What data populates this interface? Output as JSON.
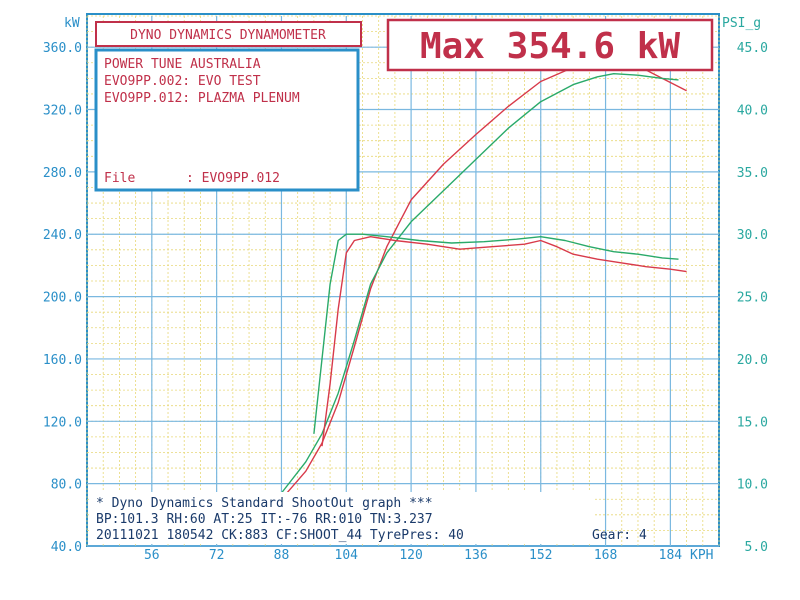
{
  "chart_data": {
    "type": "line",
    "title": "DYNO DYNAMICS DYNAMOMETER",
    "max_label": "Max 354.6 kW",
    "info": {
      "company": "POWER TUNE AUSTRALIA",
      "run1": "EVO9PP.002: EVO TEST",
      "run2": "EVO9PP.012: PLAZMA PLENUM",
      "file_label": "File",
      "file_value": ": EVO9PP.012"
    },
    "footer": {
      "line1": "* Dyno Dynamics Standard ShootOut graph ***",
      "line2": "BP:101.3  RH:60  AT:25  IT:-76  RR:010  TN:3.237",
      "line3": "20111021  180542  CK:883  CF:SHOOT_44  TyrePres: 40",
      "gear": "Gear: 4"
    },
    "xlabel": "KPH",
    "ylabel_left": "kW",
    "ylabel_right": "PSI_g",
    "xlim": [
      40,
      196
    ],
    "ylim_left": [
      40,
      380
    ],
    "ylim_right": [
      5,
      47.5
    ],
    "x_ticks": [
      56,
      72,
      88,
      104,
      120,
      136,
      152,
      168,
      184
    ],
    "y_ticks_left": [
      "40.0",
      "80.0",
      "120.0",
      "160.0",
      "200.0",
      "240.0",
      "280.0",
      "320.0",
      "360.0"
    ],
    "y_ticks_right": [
      "5.0",
      "10.0",
      "15.0",
      "20.0",
      "25.0",
      "30.0",
      "35.0",
      "40.0",
      "45.0"
    ],
    "colors": {
      "frame": "#2a8fc8",
      "title_red": "#c0304a",
      "grid_major": "#7ab8e0",
      "grid_minor": "#e8d878",
      "left_axis": "#2a8fc8",
      "right_axis": "#2aa8a0",
      "run_red": "#d83a4a",
      "run_green": "#2aaa6a",
      "text_dark": "#1a3a6a"
    },
    "series": [
      {
        "color": "red",
        "kind": "power_kW",
        "points": [
          [
            72,
            42
          ],
          [
            80,
            52
          ],
          [
            88,
            70
          ],
          [
            94,
            88
          ],
          [
            98,
            106
          ],
          [
            102,
            132
          ],
          [
            106,
            168
          ],
          [
            110,
            205
          ],
          [
            114,
            232
          ],
          [
            120,
            262
          ],
          [
            128,
            285
          ],
          [
            136,
            304
          ],
          [
            144,
            322
          ],
          [
            152,
            338
          ],
          [
            160,
            347
          ],
          [
            166,
            352
          ],
          [
            170,
            354.6
          ],
          [
            176,
            348
          ],
          [
            182,
            340
          ],
          [
            188,
            332
          ]
        ]
      },
      {
        "color": "green",
        "kind": "power_kW",
        "points": [
          [
            72,
            42
          ],
          [
            80,
            54
          ],
          [
            88,
            74
          ],
          [
            94,
            94
          ],
          [
            98,
            112
          ],
          [
            102,
            138
          ],
          [
            106,
            172
          ],
          [
            110,
            208
          ],
          [
            114,
            228
          ],
          [
            120,
            248
          ],
          [
            128,
            268
          ],
          [
            136,
            288
          ],
          [
            144,
            308
          ],
          [
            152,
            325
          ],
          [
            160,
            336
          ],
          [
            166,
            341
          ],
          [
            170,
            343
          ],
          [
            176,
            342
          ],
          [
            182,
            340
          ],
          [
            186,
            339
          ]
        ]
      },
      {
        "color": "red",
        "kind": "boost_psi",
        "points": [
          [
            98,
            13
          ],
          [
            100,
            18
          ],
          [
            102,
            24
          ],
          [
            104,
            28.5
          ],
          [
            106,
            29.5
          ],
          [
            110,
            29.8
          ],
          [
            116,
            29.5
          ],
          [
            124,
            29.2
          ],
          [
            132,
            28.8
          ],
          [
            140,
            29.0
          ],
          [
            148,
            29.2
          ],
          [
            152,
            29.5
          ],
          [
            156,
            29.0
          ],
          [
            160,
            28.4
          ],
          [
            166,
            28.0
          ],
          [
            172,
            27.7
          ],
          [
            178,
            27.4
          ],
          [
            184,
            27.2
          ],
          [
            188,
            27.0
          ]
        ]
      },
      {
        "color": "green",
        "kind": "boost_psi",
        "points": [
          [
            96,
            14
          ],
          [
            98,
            20
          ],
          [
            100,
            26
          ],
          [
            102,
            29.5
          ],
          [
            104,
            30.0
          ],
          [
            108,
            30.0
          ],
          [
            114,
            29.8
          ],
          [
            122,
            29.5
          ],
          [
            130,
            29.3
          ],
          [
            138,
            29.4
          ],
          [
            146,
            29.6
          ],
          [
            152,
            29.8
          ],
          [
            158,
            29.5
          ],
          [
            164,
            29.0
          ],
          [
            170,
            28.6
          ],
          [
            176,
            28.4
          ],
          [
            182,
            28.1
          ],
          [
            186,
            28.0
          ]
        ]
      }
    ]
  }
}
